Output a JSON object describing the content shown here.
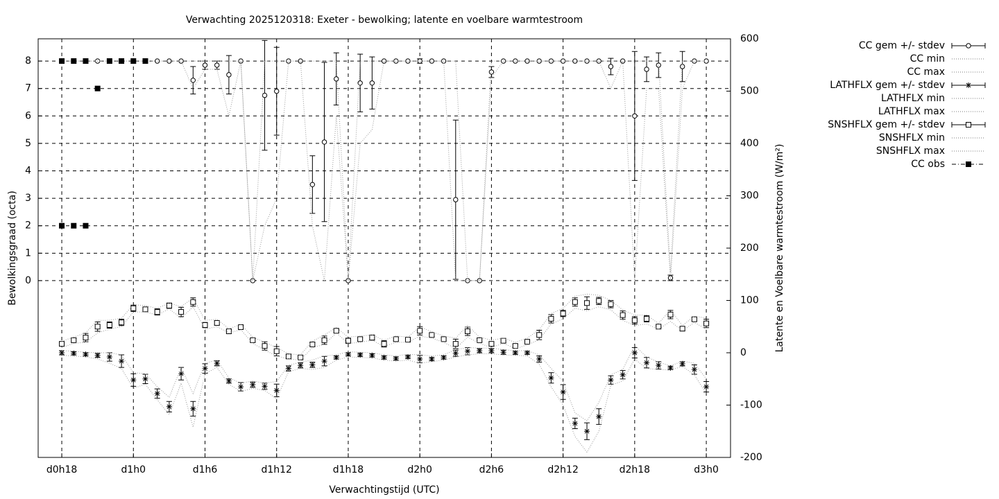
{
  "chart_data": {
    "type": "line",
    "title": "Verwachting 2025120318: Exeter - bewolking; latente en voelbare warmtestroom",
    "xlabel": "Verwachtingstijd (UTC)",
    "ylabel": "Bewolkingsgraad (octa)",
    "y2label": "Latente en Voelbare warmtestroom (W/m²)",
    "grid": true,
    "xlim": [
      16.02,
      74.03
    ],
    "xticks": [
      {
        "value": 18,
        "label": "d0h18"
      },
      {
        "value": 24,
        "label": "d1h0"
      },
      {
        "value": 30,
        "label": "d1h6"
      },
      {
        "value": 36,
        "label": "d1h12"
      },
      {
        "value": 42,
        "label": "d1h18"
      },
      {
        "value": 48,
        "label": "d2h0"
      },
      {
        "value": 54,
        "label": "d2h6"
      },
      {
        "value": 60,
        "label": "d2h12"
      },
      {
        "value": 66,
        "label": "d2h18"
      },
      {
        "value": 72,
        "label": "d3h0"
      }
    ],
    "ylim": [
      -6.44,
      8.81
    ],
    "yticks": [
      0,
      1,
      2,
      3,
      4,
      5,
      6,
      7,
      8
    ],
    "y2lim": [
      -200,
      600
    ],
    "y2ticks": [
      -200,
      -100,
      0,
      100,
      200,
      300,
      400,
      500,
      600
    ],
    "x": [
      18,
      19,
      20,
      21,
      22,
      23,
      24,
      25,
      26,
      27,
      28,
      29,
      30,
      31,
      32,
      33,
      34,
      35,
      36,
      37,
      38,
      39,
      40,
      41,
      42,
      43,
      44,
      45,
      46,
      47,
      48,
      49,
      50,
      51,
      52,
      53,
      54,
      55,
      56,
      57,
      58,
      59,
      60,
      61,
      62,
      63,
      64,
      65,
      66,
      67,
      68,
      69,
      70,
      71,
      72
    ],
    "series": [
      {
        "name": "CC gem +/- stdev",
        "color": "#000000",
        "marker": "circle",
        "line": "none",
        "axis": "y",
        "values": [
          8,
          8,
          8,
          8,
          8,
          8,
          8,
          8,
          8,
          8,
          8,
          7.3,
          7.85,
          7.85,
          7.5,
          8,
          0,
          6.75,
          6.9,
          8,
          8,
          3.5,
          5.05,
          7.35,
          0,
          7.2,
          7.2,
          8,
          8,
          8,
          8,
          8,
          8,
          2.95,
          0,
          0,
          7.6,
          8,
          8,
          8,
          8,
          8,
          8,
          8,
          8,
          8,
          7.8,
          8,
          6,
          7.7,
          7.85,
          0.1,
          7.8,
          8,
          8
        ],
        "errors": [
          0,
          0,
          0,
          0,
          0,
          0,
          0,
          0,
          0,
          0,
          0,
          0.5,
          0.15,
          0.15,
          0.7,
          0,
          0,
          2,
          1.6,
          0,
          0,
          1.05,
          2.9,
          0.95,
          0,
          1.05,
          0.95,
          0,
          0,
          0,
          0.08,
          0,
          0,
          2.9,
          0,
          0,
          0.2,
          0,
          0,
          0,
          0,
          0,
          0,
          0,
          0,
          0,
          0.3,
          0,
          2.35,
          0.45,
          0.45,
          0.1,
          0.55,
          0,
          0
        ]
      },
      {
        "name": "CC min",
        "color": "#999999",
        "marker": "none",
        "line": "dotted",
        "axis": "y",
        "values": [
          8,
          8,
          8,
          8,
          8,
          8,
          8,
          8,
          8,
          8,
          8,
          7,
          7.7,
          7.7,
          6,
          8,
          0,
          2,
          3,
          8,
          8,
          2,
          0,
          6,
          0,
          5,
          5.5,
          8,
          8,
          8,
          8,
          8,
          8,
          0,
          0,
          0,
          7.4,
          8,
          8,
          8,
          8,
          8,
          8,
          8,
          8,
          8,
          7,
          8,
          0,
          7,
          7,
          0,
          7,
          8,
          8
        ]
      },
      {
        "name": "CC max",
        "color": "#999999",
        "marker": "none",
        "line": "dotted",
        "axis": "y",
        "values": [
          8,
          8,
          8,
          8,
          8,
          8,
          8,
          8,
          8,
          8,
          8,
          8,
          8,
          8,
          8,
          8,
          0,
          8,
          8,
          8,
          8,
          8,
          8,
          8,
          0,
          8,
          8,
          8,
          8,
          8,
          8,
          8,
          8,
          8,
          0,
          0,
          8,
          8,
          8,
          8,
          8,
          8,
          8,
          8,
          8,
          8,
          8,
          8,
          8,
          8,
          8,
          0.3,
          8,
          8,
          8
        ]
      },
      {
        "name": "LATHFLX gem +/- stdev",
        "color": "#000000",
        "marker": "star",
        "line": "none",
        "axis": "y2",
        "values": [
          0,
          -1,
          -3,
          -5,
          -8,
          -16,
          -52,
          -50,
          -78,
          -103,
          -40,
          -107,
          -30,
          -20,
          -54,
          -65,
          -61,
          -64,
          -72,
          -30,
          -24,
          -23,
          -16,
          -9,
          -3,
          -4,
          -5,
          -9,
          -11,
          -8,
          -12,
          -12,
          -9,
          -1,
          3,
          4,
          4,
          1,
          0,
          0,
          -12,
          -48,
          -75,
          -135,
          -150,
          -122,
          -52,
          -42,
          0,
          -19,
          -24,
          -29,
          -21,
          -32,
          -65
        ],
        "errors": [
          4,
          3,
          3,
          4,
          8,
          12,
          12,
          9,
          9,
          10,
          12,
          14,
          9,
          5,
          4,
          8,
          5,
          6,
          12,
          5,
          5,
          5,
          9,
          3,
          3,
          3,
          3,
          3,
          3,
          3,
          7,
          3,
          3,
          6,
          7,
          4,
          4,
          4,
          3,
          3,
          6,
          10,
          14,
          10,
          16,
          15,
          8,
          8,
          10,
          10,
          7,
          3,
          4,
          9,
          10
        ]
      },
      {
        "name": "LATHFLX min",
        "color": "#999999",
        "marker": "none",
        "line": "dotted",
        "axis": "y2",
        "values": [
          -5,
          -6,
          -8,
          -12,
          -20,
          -30,
          -68,
          -60,
          -90,
          -118,
          -58,
          -142,
          -40,
          -28,
          -60,
          -74,
          -68,
          -72,
          -88,
          -36,
          -30,
          -32,
          -28,
          -14,
          -8,
          -9,
          -10,
          -14,
          -16,
          -14,
          -20,
          -17,
          -14,
          -8,
          -4,
          -2,
          -2,
          -4,
          -5,
          -6,
          -22,
          -65,
          -100,
          -160,
          -190,
          -150,
          -62,
          -54,
          -12,
          -30,
          -32,
          -33,
          -26,
          -42,
          -78
        ]
      },
      {
        "name": "LATHFLX max",
        "color": "#999999",
        "marker": "none",
        "line": "dotted",
        "axis": "y2",
        "values": [
          4,
          3,
          1,
          0,
          0,
          -4,
          -38,
          -40,
          -65,
          -85,
          -28,
          -78,
          -20,
          -14,
          -48,
          -58,
          -54,
          -58,
          -55,
          -24,
          -18,
          -14,
          -6,
          -4,
          2,
          1,
          0,
          -4,
          -6,
          -3,
          -4,
          -6,
          -4,
          6,
          10,
          9,
          9,
          6,
          4,
          4,
          -4,
          -30,
          -55,
          -115,
          -130,
          -95,
          -42,
          -32,
          14,
          -8,
          -18,
          -25,
          -16,
          -20,
          -50
        ]
      },
      {
        "name": "SNSHFLX gem +/- stdev",
        "color": "#000000",
        "marker": "square",
        "line": "none",
        "axis": "y2",
        "values": [
          17,
          24,
          29,
          50,
          53,
          58,
          85,
          83,
          78,
          90,
          78,
          97,
          53,
          57,
          41,
          49,
          24,
          13,
          3,
          -7,
          -9,
          16,
          24,
          42,
          23,
          26,
          29,
          17,
          26,
          25,
          42,
          34,
          26,
          17,
          41,
          24,
          17,
          23,
          13,
          21,
          34,
          65,
          75,
          97,
          95,
          99,
          93,
          72,
          62,
          65,
          50,
          73,
          46,
          64,
          56
        ],
        "errors": [
          4,
          4,
          8,
          9,
          6,
          6,
          6,
          4,
          6,
          5,
          9,
          8,
          5,
          4,
          3,
          3,
          3,
          8,
          9,
          4,
          3,
          3,
          8,
          3,
          5,
          3,
          5,
          6,
          3,
          4,
          8,
          3,
          3,
          9,
          8,
          3,
          4,
          4,
          3,
          3,
          9,
          8,
          6,
          8,
          12,
          7,
          7,
          8,
          7,
          6,
          2,
          8,
          3,
          3,
          8
        ]
      },
      {
        "name": "SNSHFLX min",
        "color": "#999999",
        "marker": "none",
        "line": "dotted",
        "axis": "y2",
        "values": [
          10,
          18,
          20,
          38,
          45,
          50,
          78,
          78,
          72,
          84,
          66,
          88,
          45,
          50,
          38,
          44,
          18,
          5,
          -6,
          -12,
          -14,
          10,
          16,
          38,
          18,
          20,
          24,
          12,
          20,
          20,
          32,
          28,
          20,
          8,
          30,
          18,
          10,
          18,
          8,
          15,
          25,
          55,
          65,
          85,
          80,
          88,
          82,
          62,
          52,
          55,
          45,
          60,
          42,
          58,
          45
        ]
      },
      {
        "name": "SNSHFLX max",
        "color": "#999999",
        "marker": "none",
        "line": "dotted",
        "axis": "y2",
        "values": [
          22,
          30,
          38,
          62,
          62,
          66,
          92,
          90,
          85,
          95,
          88,
          105,
          62,
          64,
          46,
          54,
          30,
          20,
          10,
          -2,
          -4,
          22,
          34,
          48,
          30,
          32,
          34,
          24,
          32,
          30,
          50,
          40,
          32,
          28,
          52,
          30,
          24,
          28,
          20,
          28,
          44,
          75,
          85,
          108,
          112,
          110,
          100,
          82,
          72,
          72,
          56,
          82,
          52,
          70,
          66
        ]
      },
      {
        "name": "CC obs",
        "color": "#000000",
        "marker": "filled-square",
        "line": "none",
        "axis": "y",
        "x": [
          18,
          18,
          19,
          19,
          20,
          20,
          21,
          22,
          23,
          24,
          25
        ],
        "values": [
          8,
          2,
          8,
          2,
          8,
          2,
          7,
          8,
          8,
          8,
          8
        ]
      }
    ]
  }
}
